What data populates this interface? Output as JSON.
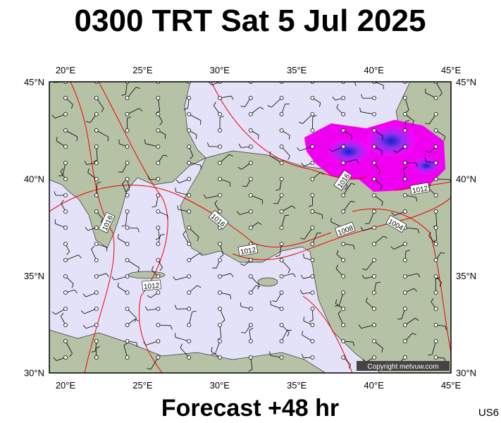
{
  "title": "0300 TRT Sat 5 Jul 2025",
  "footer": "Forecast +48 hr",
  "code": "US6",
  "copyright": "Copyright metvuw.com",
  "lon_labels": [
    "20°E",
    "25°E",
    "30°E",
    "35°E",
    "40°E",
    "45°E"
  ],
  "lat_labels": [
    "45°N",
    "40°N",
    "35°N",
    "30°N"
  ],
  "isobar_labels": [
    "1016",
    "1016",
    "1016",
    "1012",
    "1012",
    "1012",
    "1008",
    "1004"
  ]
}
